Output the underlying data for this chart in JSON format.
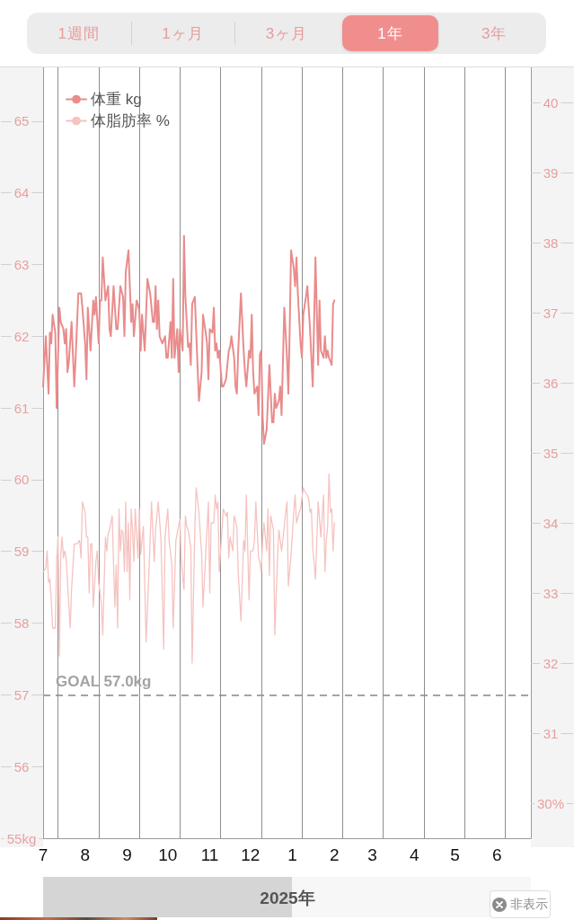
{
  "chart_data": {
    "type": "line",
    "annotations": [
      "1週間",
      "1ヶ月",
      "3ヶ月",
      "1年",
      "3年",
      "2025年",
      "非表示"
    ],
    "xlim": [
      "2024-07-01",
      "2025-06-26"
    ],
    "xticks": [
      {
        "value": "2024-07-01",
        "label": "7"
      },
      {
        "value": "2024-08-01",
        "label": "8"
      },
      {
        "value": "2024-09-01",
        "label": "9"
      },
      {
        "value": "2024-10-01",
        "label": "10"
      },
      {
        "value": "2024-11-01",
        "label": "11"
      },
      {
        "value": "2024-12-01",
        "label": "12"
      },
      {
        "value": "2025-01-01",
        "label": "1"
      },
      {
        "value": "2025-02-01",
        "label": "2"
      },
      {
        "value": "2025-03-01",
        "label": "3"
      },
      {
        "value": "2025-04-01",
        "label": "4"
      },
      {
        "value": "2025-05-01",
        "label": "5"
      },
      {
        "value": "2025-06-01",
        "label": "6"
      }
    ],
    "ylim": [
      55,
      65.75
    ],
    "yticks": [
      {
        "value": 55,
        "label": "55kg"
      },
      56,
      57,
      58,
      59,
      60,
      61,
      62,
      63,
      64,
      65
    ],
    "y2lim": [
      29.5,
      40.5
    ],
    "y2ticks": [
      {
        "value": 30,
        "label": "30%"
      },
      31,
      32,
      33,
      34,
      35,
      36,
      37,
      38,
      39,
      40
    ],
    "legend": "top left",
    "ref_lines": [
      {
        "axis": "y",
        "value": 57,
        "label": "GOAL 57.0kg",
        "color": "#a3a3a3",
        "line_style": "dashed"
      },
      {
        "axis": "x",
        "value": "2024-07-12",
        "color": "#8e8e8e"
      },
      {
        "axis": "x",
        "value": "2024-08-11",
        "color": "#8e8e8e"
      },
      {
        "axis": "x",
        "value": "2024-09-10",
        "color": "#8e8e8e"
      },
      {
        "axis": "x",
        "value": "2024-10-10",
        "color": "#8e8e8e"
      },
      {
        "axis": "x",
        "value": "2024-11-09",
        "color": "#8e8e8e"
      },
      {
        "axis": "x",
        "value": "2024-12-09",
        "color": "#8e8e8e"
      },
      {
        "axis": "x",
        "value": "2025-01-08",
        "color": "#8e8e8e"
      },
      {
        "axis": "x",
        "value": "2025-02-07",
        "color": "#8e8e8e"
      },
      {
        "axis": "x",
        "value": "2025-03-09",
        "color": "#8e8e8e"
      },
      {
        "axis": "x",
        "value": "2025-04-08",
        "color": "#8e8e8e"
      },
      {
        "axis": "x",
        "value": "2025-05-08",
        "color": "#8e8e8e"
      },
      {
        "axis": "x",
        "value": "2025-06-07",
        "color": "#8e8e8e"
      }
    ],
    "series": [
      {
        "name": "体重 kg",
        "color": "#e98c8c",
        "x": [
          "2024-07-01",
          "2024-07-03",
          "2024-07-05",
          "2024-07-06",
          "2024-07-07",
          "2024-07-08",
          "2024-07-10",
          "2024-07-11",
          "2024-07-13",
          "2024-07-14",
          "2024-07-16",
          "2024-07-17",
          "2024-07-18",
          "2024-07-19",
          "2024-07-20",
          "2024-07-22",
          "2024-07-24",
          "2024-07-25",
          "2024-07-27",
          "2024-07-29",
          "2024-07-30",
          "2024-08-01",
          "2024-08-02",
          "2024-08-03",
          "2024-08-05",
          "2024-08-07",
          "2024-08-08",
          "2024-08-09",
          "2024-08-11",
          "2024-08-12",
          "2024-08-13",
          "2024-08-14",
          "2024-08-16",
          "2024-08-18",
          "2024-08-19",
          "2024-08-20",
          "2024-08-22",
          "2024-08-24",
          "2024-08-25",
          "2024-08-27",
          "2024-08-29",
          "2024-08-30",
          "2024-08-31",
          "2024-09-02",
          "2024-09-04",
          "2024-09-05",
          "2024-09-06",
          "2024-09-08",
          "2024-09-09",
          "2024-09-10",
          "2024-09-11",
          "2024-09-12",
          "2024-09-14",
          "2024-09-16",
          "2024-09-18",
          "2024-09-20",
          "2024-09-21",
          "2024-09-22",
          "2024-09-23",
          "2024-09-24",
          "2024-09-25",
          "2024-09-27",
          "2024-09-29",
          "2024-09-30",
          "2024-10-01",
          "2024-10-03",
          "2024-10-04",
          "2024-10-05",
          "2024-10-06",
          "2024-10-08",
          "2024-10-09",
          "2024-10-10",
          "2024-10-12",
          "2024-10-13",
          "2024-10-14",
          "2024-10-16",
          "2024-10-17",
          "2024-10-18",
          "2024-10-19",
          "2024-10-21",
          "2024-10-22",
          "2024-10-24",
          "2024-10-26",
          "2024-10-27",
          "2024-10-29",
          "2024-10-30",
          "2024-10-31",
          "2024-11-01",
          "2024-11-03",
          "2024-11-04",
          "2024-11-05",
          "2024-11-06",
          "2024-11-07",
          "2024-11-08",
          "2024-11-10",
          "2024-11-11",
          "2024-11-13",
          "2024-11-15",
          "2024-11-16",
          "2024-11-17",
          "2024-11-19",
          "2024-11-20",
          "2024-11-21",
          "2024-11-22",
          "2024-11-24",
          "2024-11-26",
          "2024-11-27",
          "2024-11-28",
          "2024-11-30",
          "2024-12-01",
          "2024-12-02",
          "2024-12-03",
          "2024-12-04",
          "2024-12-06",
          "2024-12-07",
          "2024-12-08",
          "2024-12-09",
          "2024-12-10",
          "2024-12-11",
          "2024-12-13",
          "2024-12-15",
          "2024-12-17",
          "2024-12-18",
          "2024-12-19",
          "2024-12-20",
          "2024-12-22",
          "2024-12-23",
          "2024-12-24",
          "2024-12-26",
          "2024-12-28",
          "2024-12-29",
          "2024-12-30",
          "2024-12-31",
          "2025-01-02",
          "2025-01-03",
          "2025-01-04",
          "2025-01-05",
          "2025-01-07",
          "2025-01-08",
          "2025-01-09",
          "2025-01-11",
          "2025-01-12",
          "2025-01-14",
          "2025-01-15",
          "2025-01-16",
          "2025-01-18",
          "2025-01-20",
          "2025-01-21",
          "2025-01-22",
          "2025-01-24",
          "2025-01-25",
          "2025-01-26",
          "2025-01-27",
          "2025-01-28",
          "2025-01-30",
          "2025-01-31",
          "2025-02-01"
        ],
        "values": [
          61.3,
          62.0,
          61.2,
          62.05,
          61.9,
          62.3,
          62.05,
          61.0,
          62.4,
          62.2,
          62.1,
          61.9,
          62.1,
          61.5,
          61.65,
          62.2,
          61.3,
          61.7,
          62.6,
          62.6,
          62.4,
          61.9,
          61.4,
          62.4,
          61.8,
          62.5,
          62.3,
          62.55,
          61.9,
          62.5,
          62.5,
          63.1,
          62.5,
          62.7,
          62.1,
          62.0,
          62.7,
          62.1,
          62.1,
          62.7,
          62.55,
          62.0,
          62.9,
          63.2,
          62.2,
          62.45,
          62.0,
          62.5,
          62.45,
          62.35,
          61.8,
          62.3,
          61.8,
          62.8,
          62.6,
          62.2,
          62.2,
          62.7,
          62.1,
          62.5,
          62.0,
          61.9,
          62.0,
          61.7,
          61.7,
          62.2,
          61.7,
          62.8,
          61.7,
          62.1,
          61.5,
          62.1,
          61.8,
          63.4,
          62.55,
          61.85,
          61.9,
          61.6,
          62.45,
          62.55,
          62.05,
          61.1,
          61.5,
          62.3,
          62.05,
          61.9,
          61.4,
          62.1,
          62.05,
          62.4,
          61.8,
          61.9,
          61.7,
          61.8,
          61.3,
          61.3,
          61.4,
          61.8,
          61.85,
          62.0,
          61.7,
          61.3,
          61.2,
          61.8,
          62.6,
          61.8,
          61.5,
          61.3,
          61.8,
          61.7,
          62.3,
          61.5,
          61.2,
          61.3,
          60.9,
          61.75,
          61.8,
          60.9,
          60.5,
          60.7,
          61.6,
          60.8,
          60.8,
          61.2,
          61.0,
          61.1,
          61.3,
          60.9,
          62.4,
          61.7,
          61.2,
          62.1,
          63.2,
          62.95,
          62.7,
          63.1,
          62.6,
          61.9,
          61.7,
          62.3,
          62.55,
          62.7,
          62.1,
          61.7,
          61.3,
          63.1,
          61.6,
          62.5,
          61.8,
          61.7,
          62.0,
          61.7,
          61.8,
          61.7,
          61.6,
          62.45,
          62.5
        ]
      },
      {
        "name": "体脂肪率 %",
        "color": "#f5c3c0",
        "axis": "y2",
        "x": [
          "2024-07-01",
          "2024-07-03",
          "2024-07-04",
          "2024-07-05",
          "2024-07-06",
          "2024-07-07",
          "2024-07-08",
          "2024-07-10",
          "2024-07-11",
          "2024-07-12",
          "2024-07-13",
          "2024-07-14",
          "2024-07-15",
          "2024-07-16",
          "2024-07-17",
          "2024-07-18",
          "2024-07-19",
          "2024-07-21",
          "2024-07-22",
          "2024-07-24",
          "2024-07-26",
          "2024-07-28",
          "2024-07-29",
          "2024-07-30",
          "2024-08-01",
          "2024-08-02",
          "2024-08-03",
          "2024-08-04",
          "2024-08-05",
          "2024-08-06",
          "2024-08-07",
          "2024-08-09",
          "2024-08-10",
          "2024-08-11",
          "2024-08-13",
          "2024-08-14",
          "2024-08-16",
          "2024-08-17",
          "2024-08-18",
          "2024-08-19",
          "2024-08-21",
          "2024-08-22",
          "2024-08-23",
          "2024-08-24",
          "2024-08-25",
          "2024-08-26",
          "2024-08-27",
          "2024-08-28",
          "2024-08-29",
          "2024-08-30",
          "2024-08-31",
          "2024-09-01",
          "2024-09-02",
          "2024-09-03",
          "2024-09-04",
          "2024-09-05",
          "2024-09-06",
          "2024-09-07",
          "2024-09-09",
          "2024-09-10",
          "2024-09-11",
          "2024-09-13",
          "2024-09-14",
          "2024-09-15",
          "2024-09-17",
          "2024-09-19",
          "2024-09-21",
          "2024-09-22",
          "2024-09-24",
          "2024-09-26",
          "2024-09-28",
          "2024-09-29",
          "2024-10-01",
          "2024-10-02",
          "2024-10-04",
          "2024-10-05",
          "2024-10-07",
          "2024-10-08",
          "2024-10-10",
          "2024-10-11",
          "2024-10-13",
          "2024-10-14",
          "2024-10-15",
          "2024-10-16",
          "2024-10-18",
          "2024-10-19",
          "2024-10-21",
          "2024-10-22",
          "2024-10-24",
          "2024-10-26",
          "2024-10-27",
          "2024-10-29",
          "2024-10-31",
          "2024-11-01",
          "2024-11-02",
          "2024-11-04",
          "2024-11-05",
          "2024-11-06",
          "2024-11-07",
          "2024-11-08",
          "2024-11-10",
          "2024-11-11",
          "2024-11-13",
          "2024-11-14",
          "2024-11-15",
          "2024-11-16",
          "2024-11-18",
          "2024-11-19",
          "2024-11-21",
          "2024-11-22",
          "2024-11-24",
          "2024-11-26",
          "2024-11-27",
          "2024-11-28",
          "2024-11-30",
          "2024-12-01",
          "2024-12-03",
          "2024-12-04",
          "2024-12-05",
          "2024-12-07",
          "2024-12-08",
          "2024-12-09",
          "2024-12-10",
          "2024-12-11",
          "2024-12-13",
          "2024-12-14",
          "2024-12-15",
          "2024-12-16",
          "2024-12-18",
          "2024-12-19",
          "2024-12-21",
          "2024-12-22",
          "2024-12-24",
          "2024-12-26",
          "2024-12-27",
          "2024-12-28",
          "2024-12-29",
          "2024-12-31",
          "2025-01-02",
          "2025-01-03",
          "2025-01-04",
          "2025-01-06",
          "2025-01-07",
          "2025-01-09",
          "2025-01-10",
          "2025-01-12",
          "2025-01-13",
          "2025-01-14",
          "2025-01-15",
          "2025-01-16",
          "2025-01-18",
          "2025-01-20",
          "2025-01-22",
          "2025-01-24",
          "2025-01-25",
          "2025-01-26",
          "2025-01-27",
          "2025-01-28",
          "2025-01-29",
          "2025-01-30",
          "2025-01-31",
          "2025-02-01"
        ],
        "values": [
          33.3,
          33.35,
          33.6,
          33.15,
          33.2,
          32.9,
          32.5,
          32.5,
          33.45,
          33.8,
          32.1,
          33.55,
          33.8,
          33.5,
          33.6,
          33.5,
          33.15,
          32.5,
          33.05,
          33.7,
          33.7,
          33.75,
          33.5,
          34.3,
          34.15,
          33.8,
          33.8,
          33.0,
          33.7,
          33.7,
          32.8,
          33.45,
          33.6,
          33.15,
          32.85,
          32.4,
          33.8,
          33.6,
          33.85,
          33.9,
          34.1,
          33.4,
          32.8,
          33.4,
          32.5,
          34.2,
          33.6,
          33.9,
          33.85,
          33.3,
          34.3,
          33.3,
          34.0,
          32.9,
          34.2,
          33.9,
          33.45,
          34.2,
          33.5,
          34.2,
          33.55,
          33.95,
          33.15,
          32.3,
          33.25,
          34.3,
          33.45,
          33.9,
          34.3,
          33.75,
          32.2,
          33.8,
          34.2,
          33.75,
          33.4,
          32.5,
          33.75,
          33.85,
          34.05,
          33.45,
          33.05,
          34.1,
          33.95,
          33.9,
          33.65,
          32.0,
          33.95,
          34.5,
          34.15,
          33.55,
          32.8,
          33.55,
          34.3,
          33.0,
          34.0,
          34.0,
          34.4,
          34.2,
          34.3,
          33.3,
          33.9,
          34.2,
          34.1,
          34.15,
          33.5,
          33.8,
          33.6,
          34.1,
          33.95,
          33.3,
          32.6,
          33.75,
          33.6,
          34.4,
          32.9,
          33.6,
          33.6,
          33.75,
          34.3,
          33.5,
          33.45,
          33.3,
          33.75,
          34.0,
          33.6,
          34.2,
          33.25,
          34.1,
          33.9,
          32.4,
          33.5,
          33.9,
          33.6,
          33.95,
          34.15,
          34.3,
          33.1,
          33.55,
          34.15,
          34.4,
          34.0,
          34.15,
          34.2,
          34.5,
          34.45,
          34.4,
          34.35,
          34.15,
          34.2,
          33.65,
          33.2,
          34.3,
          33.8,
          34.4,
          33.3,
          33.75,
          33.95,
          34.7,
          34.15,
          34.2,
          33.6,
          34.0
        ]
      }
    ]
  }
}
